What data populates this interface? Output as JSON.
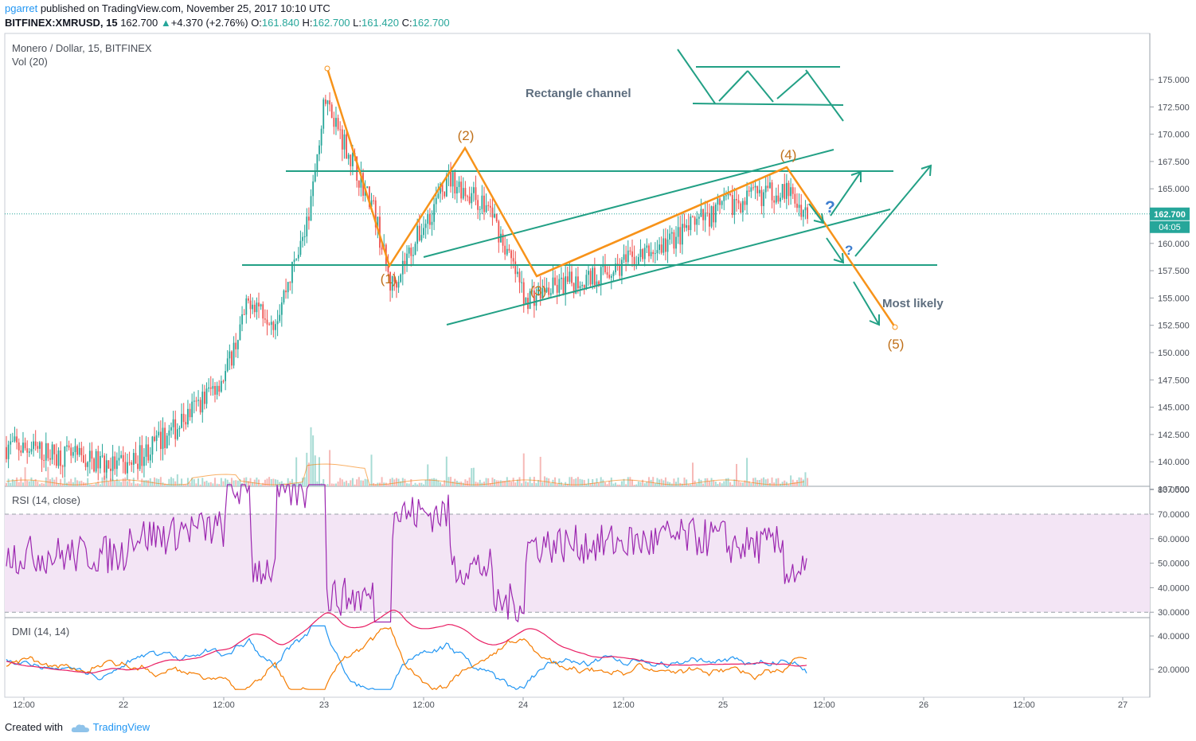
{
  "header": {
    "user": "pgarret",
    "published_text": "published on TradingView.com, November 25, 2017 10:10 UTC",
    "symbol_line": "BITFINEX:XMRUSD, 15",
    "last": "162.700",
    "change": "+4.370 (+2.76%)",
    "o_label": "O:",
    "o": "161.840",
    "h_label": "H:",
    "h": "162.700",
    "l_label": "L:",
    "l": "161.420",
    "c_label": "C:",
    "c": "162.700"
  },
  "legend": {
    "main": "Monero / Dollar, 15, BITFINEX",
    "vol": "Vol (20)",
    "rsi": "RSI (14, close)",
    "dmi": "DMI (14, 14)"
  },
  "price_axis": {
    "ticks": [
      "175.000",
      "172.500",
      "170.000",
      "167.500",
      "165.000",
      "160.000",
      "157.500",
      "155.000",
      "152.500",
      "150.000",
      "147.500",
      "145.000",
      "142.500",
      "140.000",
      "137.500"
    ],
    "tick_values": [
      175,
      172.5,
      170,
      167.5,
      165,
      160,
      157.5,
      155,
      152.5,
      150,
      147.5,
      145,
      142.5,
      140,
      137.5
    ],
    "last_price_label": "162.700",
    "last_price": 162.7,
    "countdown_label": "04:05"
  },
  "rsi_axis": {
    "ticks": [
      "80.0000",
      "70.0000",
      "60.0000",
      "50.0000",
      "40.0000",
      "30.0000"
    ],
    "values": [
      80,
      70,
      60,
      50,
      40,
      30
    ]
  },
  "dmi_axis": {
    "ticks": [
      "40.0000",
      "20.0000"
    ],
    "values": [
      40,
      20
    ]
  },
  "time_axis": {
    "labels": [
      "12:00",
      "22",
      "12:00",
      "23",
      "12:00",
      "24",
      "12:00",
      "25",
      "12:00",
      "26",
      "12:00",
      "27"
    ]
  },
  "annotations": {
    "rectangle_channel": "Rectangle channel",
    "most_likely": "Most likely",
    "wave_1": "(1)",
    "wave_2": "(2)",
    "wave_3": "(3)",
    "wave_4": "(4)",
    "wave_5": "(5)",
    "question": "?"
  },
  "colors": {
    "up": "#26a69a",
    "down": "#ef5350",
    "wave": "#f7931a",
    "wave_label": "#c0701a",
    "trend": "#22a085",
    "rsi": "#9c27b0",
    "rsi_band": "#f3e5f5",
    "di_plus": "#2196f3",
    "di_minus": "#f57c00",
    "adx": "#e91e63",
    "last_price_bg": "#26a69a",
    "annotation_text": "#5d6d7e",
    "question": "#3f7fd0"
  },
  "chart_data": {
    "type": "candlestick",
    "title": "Monero / Dollar, 15, BITFINEX",
    "ylim": [
      135.5,
      176.2
    ],
    "x_range_days": [
      "Nov 21 12:00",
      "Nov 27 00:00"
    ],
    "approx_close_path": [
      {
        "t": "Nov 21 10:00",
        "price": 136.5
      },
      {
        "t": "Nov 21 18:00",
        "price": 141.5
      },
      {
        "t": "Nov 22 00:00",
        "price": 139.5
      },
      {
        "t": "Nov 22 06:00",
        "price": 143.0
      },
      {
        "t": "Nov 22 12:00",
        "price": 148.0
      },
      {
        "t": "Nov 22 15:00",
        "price": 155.0
      },
      {
        "t": "Nov 22 18:00",
        "price": 153.0
      },
      {
        "t": "Nov 22 22:00",
        "price": 162.0
      },
      {
        "t": "Nov 23 00:00",
        "price": 173.5
      },
      {
        "t": "Nov 23 06:00",
        "price": 163.0
      },
      {
        "t": "Nov 23 08:00",
        "price": 156.0
      },
      {
        "t": "Nov 23 15:00",
        "price": 166.0
      },
      {
        "t": "Nov 23 20:00",
        "price": 163.0
      },
      {
        "t": "Nov 24 00:00",
        "price": 155.0
      },
      {
        "t": "Nov 24 10:00",
        "price": 157.5
      },
      {
        "t": "Nov 24 16:00",
        "price": 159.5
      },
      {
        "t": "Nov 25 00:00",
        "price": 163.5
      },
      {
        "t": "Nov 25 07:00",
        "price": 165.0
      },
      {
        "t": "Nov 25 10:00",
        "price": 162.7
      }
    ],
    "wave_points": [
      {
        "label": "(1)",
        "t": "Nov 23 08:00",
        "price": 156.0
      },
      {
        "label": "(2)",
        "t": "Nov 23 12:30",
        "price": 166.5
      },
      {
        "label": "(3)",
        "t": "Nov 24 01:30",
        "price": 155.0
      },
      {
        "label": "(4)",
        "t": "Nov 25 07:00",
        "price": 165.0
      },
      {
        "label": "(5)",
        "t": "Nov 25 19:00",
        "price": 150.0
      }
    ],
    "wave_start": {
      "t": "Nov 23 00:00",
      "price": 174.0
    },
    "horizontal_levels": [
      165.0,
      156.0
    ],
    "rsi_overbought": 70,
    "rsi_oversold": 30,
    "rsi_last": 52,
    "dmi_series": [
      "+DI",
      "-DI",
      "ADX"
    ]
  }
}
